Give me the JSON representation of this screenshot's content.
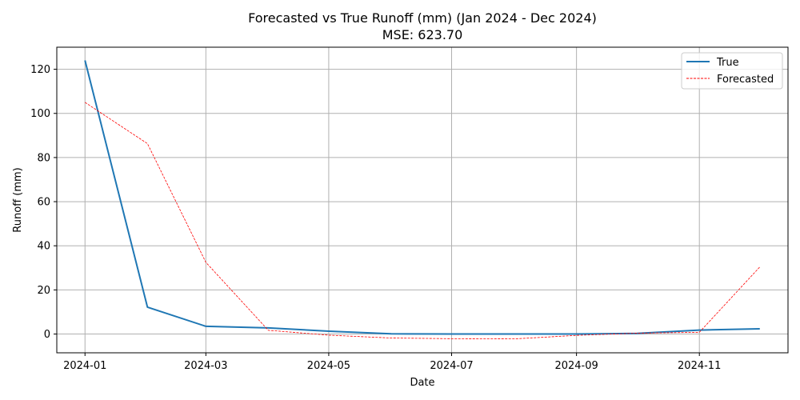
{
  "chart_data": {
    "type": "line",
    "title": "Forecasted vs True Runoff (mm) (Jan 2024 - Dec 2024)",
    "subtitle": "MSE: 623.70",
    "xlabel": "Date",
    "ylabel": "Runoff (mm)",
    "x": [
      "2024-01-01",
      "2024-02-01",
      "2024-03-01",
      "2024-04-01",
      "2024-05-01",
      "2024-06-01",
      "2024-07-01",
      "2024-08-01",
      "2024-09-01",
      "2024-10-01",
      "2024-11-01",
      "2024-12-01"
    ],
    "xlim": [
      "2023-12-18",
      "2024-12-15"
    ],
    "ylim": [
      -8.5,
      130
    ],
    "x_ticks": [
      "2024-01-01",
      "2024-03-01",
      "2024-05-01",
      "2024-07-01",
      "2024-09-01",
      "2024-11-01"
    ],
    "x_tick_labels": [
      "2024-01",
      "2024-03",
      "2024-05",
      "2024-07",
      "2024-09",
      "2024-11"
    ],
    "y_ticks": [
      0,
      20,
      40,
      60,
      80,
      100,
      120
    ],
    "grid": true,
    "legend_position": "top-right",
    "series": [
      {
        "name": "True",
        "color": "#1f77b4",
        "style": "solid",
        "values": [
          124,
          12.2,
          3.5,
          2.8,
          1.3,
          0.1,
          0.0,
          0.0,
          0.0,
          0.3,
          1.8,
          2.4
        ]
      },
      {
        "name": "Forecasted",
        "color": "#ff0000",
        "style": "dashed",
        "values": [
          105,
          86.3,
          32.5,
          1.7,
          -0.5,
          -1.8,
          -2.1,
          -2.2,
          -0.6,
          0.4,
          0.8,
          30.4
        ]
      }
    ]
  }
}
